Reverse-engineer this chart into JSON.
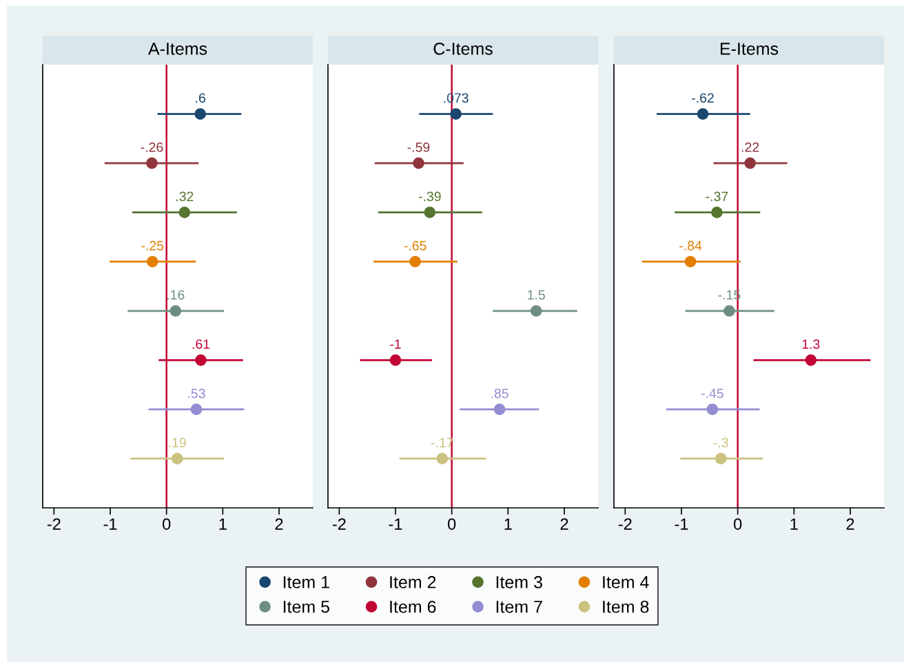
{
  "chart_data": [
    {
      "type": "scatter",
      "title": "A-Items",
      "orientation": "horizontal",
      "categories": [
        null,
        null,
        null,
        null,
        null,
        null,
        null,
        null
      ],
      "xlim": [
        -2.2,
        2.6
      ],
      "xticks": [
        -2,
        -1,
        0,
        1,
        2
      ],
      "tick_labels": "x",
      "grid": false,
      "marker": "circle",
      "legend": "bottom",
      "ref_lines": [
        {
          "axis": "x",
          "value": 0,
          "color": "#c10534"
        }
      ],
      "series": [
        {
          "name": "Item 1",
          "color": "#1a476f",
          "values": [
            0.6,
            null,
            null,
            null,
            null,
            null,
            null,
            null
          ],
          "errors": [
            [
              -0.16,
              1.33
            ],
            null,
            null,
            null,
            null,
            null,
            null,
            null
          ],
          "value_labels": [
            ".6",
            null,
            null,
            null,
            null,
            null,
            null,
            null
          ]
        },
        {
          "name": "Item 2",
          "color": "#90353b",
          "values": [
            null,
            -0.26,
            null,
            null,
            null,
            null,
            null,
            null
          ],
          "errors": [
            null,
            [
              -1.1,
              0.57
            ],
            null,
            null,
            null,
            null,
            null,
            null
          ],
          "value_labels": [
            null,
            "-.26",
            null,
            null,
            null,
            null,
            null,
            null
          ]
        },
        {
          "name": "Item 3",
          "color": "#55752f",
          "values": [
            null,
            null,
            0.32,
            null,
            null,
            null,
            null,
            null
          ],
          "errors": [
            null,
            null,
            [
              -0.61,
              1.25
            ],
            null,
            null,
            null,
            null,
            null
          ],
          "value_labels": [
            null,
            null,
            ".32",
            null,
            null,
            null,
            null,
            null
          ]
        },
        {
          "name": "Item 4",
          "color": "#e37e00",
          "values": [
            null,
            null,
            null,
            -0.25,
            null,
            null,
            null,
            null
          ],
          "errors": [
            null,
            null,
            null,
            [
              -1.01,
              0.52
            ],
            null,
            null,
            null,
            null
          ],
          "value_labels": [
            null,
            null,
            null,
            "-.25",
            null,
            null,
            null,
            null
          ]
        },
        {
          "name": "Item 5",
          "color": "#6e8e84",
          "values": [
            null,
            null,
            null,
            null,
            0.16,
            null,
            null,
            null
          ],
          "errors": [
            null,
            null,
            null,
            null,
            [
              -0.69,
              1.02
            ],
            null,
            null,
            null
          ],
          "value_labels": [
            null,
            null,
            null,
            null,
            ".16",
            null,
            null,
            null
          ]
        },
        {
          "name": "Item 6",
          "color": "#c10534",
          "values": [
            null,
            null,
            null,
            null,
            null,
            0.61,
            null,
            null
          ],
          "errors": [
            null,
            null,
            null,
            null,
            null,
            [
              -0.14,
              1.36
            ],
            null,
            null
          ],
          "value_labels": [
            null,
            null,
            null,
            null,
            null,
            ".61",
            null,
            null
          ]
        },
        {
          "name": "Item 7",
          "color": "#938dd2",
          "values": [
            null,
            null,
            null,
            null,
            null,
            null,
            0.53,
            null
          ],
          "errors": [
            null,
            null,
            null,
            null,
            null,
            null,
            [
              -0.32,
              1.38
            ],
            null
          ],
          "value_labels": [
            null,
            null,
            null,
            null,
            null,
            null,
            ".53",
            null
          ]
        },
        {
          "name": "Item 8",
          "color": "#cac27e",
          "values": [
            null,
            null,
            null,
            null,
            null,
            null,
            null,
            0.19
          ],
          "errors": [
            null,
            null,
            null,
            null,
            null,
            null,
            null,
            [
              -0.64,
              1.02
            ]
          ],
          "value_labels": [
            null,
            null,
            null,
            null,
            null,
            null,
            null,
            ".19"
          ]
        }
      ]
    },
    {
      "type": "scatter",
      "title": "C-Items",
      "orientation": "horizontal",
      "categories": [
        null,
        null,
        null,
        null,
        null,
        null,
        null,
        null
      ],
      "xlim": [
        -2.2,
        2.6
      ],
      "xticks": [
        -2,
        -1,
        0,
        1,
        2
      ],
      "tick_labels": "x",
      "grid": false,
      "marker": "circle",
      "ref_lines": [
        {
          "axis": "x",
          "value": 0,
          "color": "#c10534"
        }
      ],
      "series": [
        {
          "color": "#1a476f",
          "values": [
            0.073,
            null,
            null,
            null,
            null,
            null,
            null,
            null
          ],
          "errors": [
            [
              -0.58,
              0.73
            ],
            null,
            null,
            null,
            null,
            null,
            null,
            null
          ],
          "value_labels": [
            ".073",
            null,
            null,
            null,
            null,
            null,
            null,
            null
          ]
        },
        {
          "color": "#90353b",
          "values": [
            null,
            -0.59,
            null,
            null,
            null,
            null,
            null,
            null
          ],
          "errors": [
            null,
            [
              -1.37,
              0.21
            ],
            null,
            null,
            null,
            null,
            null,
            null
          ],
          "value_labels": [
            null,
            "-.59",
            null,
            null,
            null,
            null,
            null,
            null
          ]
        },
        {
          "color": "#55752f",
          "values": [
            null,
            null,
            -0.39,
            null,
            null,
            null,
            null,
            null
          ],
          "errors": [
            null,
            null,
            [
              -1.31,
              0.54
            ],
            null,
            null,
            null,
            null,
            null
          ],
          "value_labels": [
            null,
            null,
            "-.39",
            null,
            null,
            null,
            null,
            null
          ]
        },
        {
          "color": "#e37e00",
          "values": [
            null,
            null,
            null,
            -0.65,
            null,
            null,
            null,
            null
          ],
          "errors": [
            null,
            null,
            null,
            [
              -1.39,
              0.1
            ],
            null,
            null,
            null,
            null
          ],
          "value_labels": [
            null,
            null,
            null,
            "-.65",
            null,
            null,
            null,
            null
          ]
        },
        {
          "color": "#6e8e84",
          "values": [
            null,
            null,
            null,
            null,
            1.5,
            null,
            null,
            null
          ],
          "errors": [
            null,
            null,
            null,
            null,
            [
              0.73,
              2.23
            ],
            null,
            null,
            null
          ],
          "value_labels": [
            null,
            null,
            null,
            null,
            "1.5",
            null,
            null,
            null
          ]
        },
        {
          "color": "#c10534",
          "values": [
            null,
            null,
            null,
            null,
            null,
            -1,
            null,
            null
          ],
          "errors": [
            null,
            null,
            null,
            null,
            null,
            [
              -1.63,
              -0.35
            ],
            null,
            null
          ],
          "value_labels": [
            null,
            null,
            null,
            null,
            null,
            "-1",
            null,
            null
          ]
        },
        {
          "color": "#938dd2",
          "values": [
            null,
            null,
            null,
            null,
            null,
            null,
            0.85,
            null
          ],
          "errors": [
            null,
            null,
            null,
            null,
            null,
            null,
            [
              0.14,
              1.55
            ],
            null
          ],
          "value_labels": [
            null,
            null,
            null,
            null,
            null,
            null,
            ".85",
            null
          ]
        },
        {
          "color": "#cac27e",
          "values": [
            null,
            null,
            null,
            null,
            null,
            null,
            null,
            -0.17
          ],
          "errors": [
            null,
            null,
            null,
            null,
            null,
            null,
            null,
            [
              -0.93,
              0.61
            ]
          ],
          "value_labels": [
            null,
            null,
            null,
            null,
            null,
            null,
            null,
            "-.17"
          ]
        }
      ]
    },
    {
      "type": "scatter",
      "title": "E-Items",
      "orientation": "horizontal",
      "categories": [
        null,
        null,
        null,
        null,
        null,
        null,
        null,
        null
      ],
      "xlim": [
        -2.2,
        2.6
      ],
      "xticks": [
        -2,
        -1,
        0,
        1,
        2
      ],
      "tick_labels": "x",
      "grid": false,
      "marker": "circle",
      "ref_lines": [
        {
          "axis": "x",
          "value": 0,
          "color": "#c10534"
        }
      ],
      "series": [
        {
          "color": "#1a476f",
          "values": [
            -0.62,
            null,
            null,
            null,
            null,
            null,
            null,
            null
          ],
          "errors": [
            [
              -1.44,
              0.22
            ],
            null,
            null,
            null,
            null,
            null,
            null,
            null
          ],
          "value_labels": [
            "-.62",
            null,
            null,
            null,
            null,
            null,
            null,
            null
          ]
        },
        {
          "color": "#90353b",
          "values": [
            null,
            0.22,
            null,
            null,
            null,
            null,
            null,
            null
          ],
          "errors": [
            null,
            [
              -0.43,
              0.88
            ],
            null,
            null,
            null,
            null,
            null,
            null
          ],
          "value_labels": [
            null,
            ".22",
            null,
            null,
            null,
            null,
            null,
            null
          ]
        },
        {
          "color": "#55752f",
          "values": [
            null,
            null,
            -0.37,
            null,
            null,
            null,
            null,
            null
          ],
          "errors": [
            null,
            null,
            [
              -1.12,
              0.4
            ],
            null,
            null,
            null,
            null,
            null
          ],
          "value_labels": [
            null,
            null,
            "-.37",
            null,
            null,
            null,
            null,
            null
          ]
        },
        {
          "color": "#e37e00",
          "values": [
            null,
            null,
            null,
            -0.84,
            null,
            null,
            null,
            null
          ],
          "errors": [
            null,
            null,
            null,
            [
              -1.7,
              0.05
            ],
            null,
            null,
            null,
            null
          ],
          "value_labels": [
            null,
            null,
            null,
            "-.84",
            null,
            null,
            null,
            null
          ]
        },
        {
          "color": "#6e8e84",
          "values": [
            null,
            null,
            null,
            null,
            -0.15,
            null,
            null,
            null
          ],
          "errors": [
            null,
            null,
            null,
            null,
            [
              -0.93,
              0.65
            ],
            null,
            null,
            null
          ],
          "value_labels": [
            null,
            null,
            null,
            null,
            "-.15",
            null,
            null,
            null
          ]
        },
        {
          "color": "#c10534",
          "values": [
            null,
            null,
            null,
            null,
            null,
            1.3,
            null,
            null
          ],
          "errors": [
            null,
            null,
            null,
            null,
            null,
            [
              0.28,
              2.36
            ],
            null,
            null
          ],
          "value_labels": [
            null,
            null,
            null,
            null,
            null,
            "1.3",
            null,
            null
          ]
        },
        {
          "color": "#938dd2",
          "values": [
            null,
            null,
            null,
            null,
            null,
            null,
            -0.45,
            null
          ],
          "errors": [
            null,
            null,
            null,
            null,
            null,
            null,
            [
              -1.27,
              0.39
            ],
            null
          ],
          "value_labels": [
            null,
            null,
            null,
            null,
            null,
            null,
            "-.45",
            null
          ]
        },
        {
          "color": "#cac27e",
          "values": [
            null,
            null,
            null,
            null,
            null,
            null,
            null,
            -0.3
          ],
          "errors": [
            null,
            null,
            null,
            null,
            null,
            null,
            null,
            [
              -1.02,
              0.45
            ]
          ],
          "value_labels": [
            null,
            null,
            null,
            null,
            null,
            null,
            null,
            "-.3"
          ]
        }
      ]
    }
  ]
}
